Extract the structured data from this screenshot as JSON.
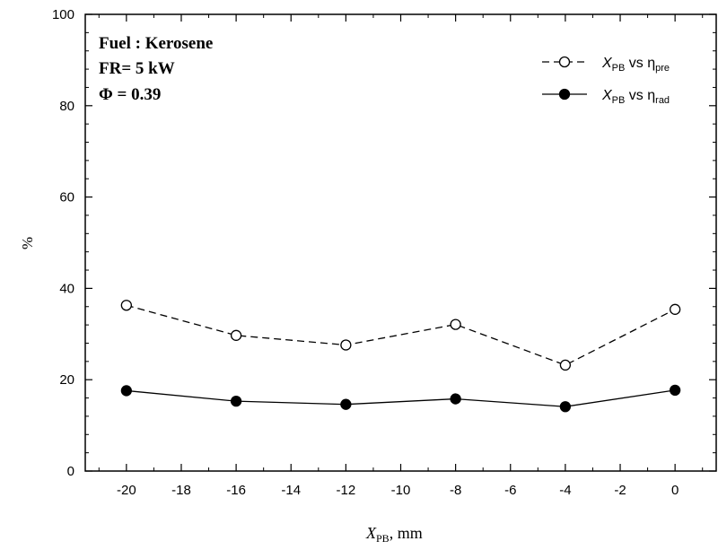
{
  "chart_data": {
    "type": "line",
    "x": [
      -20,
      -16,
      -12,
      -8,
      -4,
      0
    ],
    "series": [
      {
        "name": "X_PB vs η_pre",
        "legend_parts": {
          "var": "X",
          "sub": "PB",
          "mid": " vs η",
          "sub2": "pre"
        },
        "values": [
          36.3,
          29.7,
          27.6,
          32.1,
          23.2,
          35.4
        ],
        "style": "dashed",
        "marker": "open-circle"
      },
      {
        "name": "X_PB vs η_rad",
        "legend_parts": {
          "var": "X",
          "sub": "PB",
          "mid": " vs η",
          "sub2": "rad"
        },
        "values": [
          17.6,
          15.3,
          14.6,
          15.8,
          14.1,
          17.7
        ],
        "style": "solid",
        "marker": "filled-circle"
      }
    ],
    "xlim": [
      -21.5,
      1.5
    ],
    "ylim": [
      0,
      100
    ],
    "xticks": [
      -20,
      -18,
      -16,
      -14,
      -12,
      -10,
      -8,
      -6,
      -4,
      -2,
      0
    ],
    "yticks": [
      0,
      20,
      40,
      60,
      80,
      100
    ],
    "xlabel": {
      "var": "X",
      "sub": "PB",
      "rest": ", mm"
    },
    "ylabel": "%",
    "grid": false,
    "legend_position": "top-right",
    "annotations": [
      "Fuel : Kerosene",
      "FR= 5 kW",
      "Φ = 0.39"
    ]
  }
}
